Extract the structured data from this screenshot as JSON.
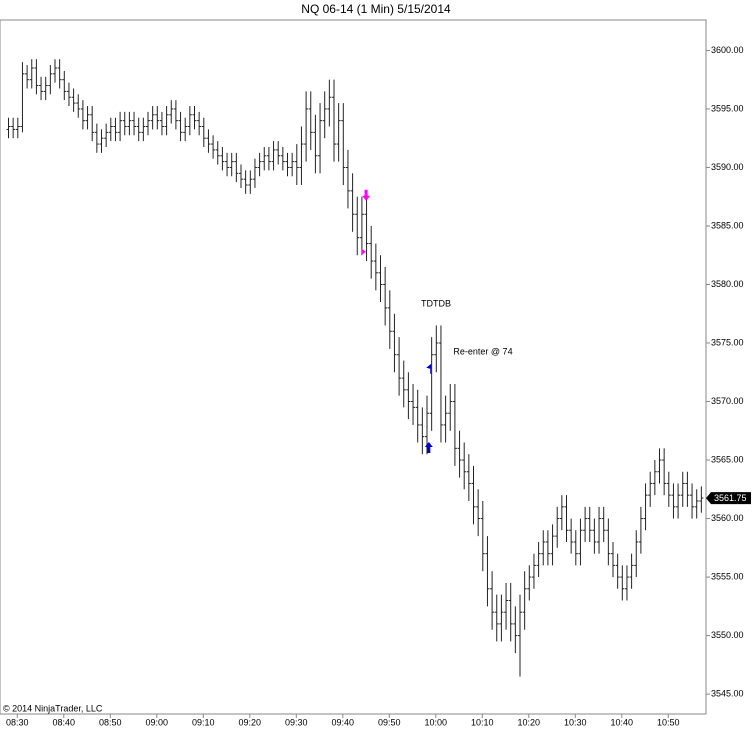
{
  "chart_data": {
    "type": "ohlc",
    "title": "NQ 06-14 (1 Min)  5/15/2014",
    "copyright": "© 2014 NinjaTrader, LLC",
    "color": "#222222",
    "categories": [
      null,
      null,
      "08:30",
      null,
      null,
      null,
      null,
      null,
      null,
      null,
      null,
      null,
      "08:40",
      null,
      null,
      null,
      null,
      null,
      null,
      null,
      null,
      null,
      "08:50",
      null,
      null,
      null,
      null,
      null,
      null,
      null,
      null,
      null,
      "09:00",
      null,
      null,
      null,
      null,
      null,
      null,
      null,
      null,
      null,
      "09:10",
      null,
      null,
      null,
      null,
      null,
      null,
      null,
      null,
      null,
      "09:20",
      null,
      null,
      null,
      null,
      null,
      null,
      null,
      null,
      null,
      "09:30",
      null,
      null,
      null,
      null,
      null,
      null,
      null,
      null,
      null,
      "09:40",
      null,
      null,
      null,
      null,
      null,
      null,
      null,
      null,
      null,
      "09:50",
      null,
      null,
      null,
      null,
      null,
      null,
      null,
      null,
      null,
      "10:00",
      null,
      null,
      null,
      null,
      null,
      null,
      null,
      null,
      null,
      "10:10",
      null,
      null,
      null,
      null,
      null,
      null,
      null,
      null,
      null,
      "10:20",
      null,
      null,
      null,
      null,
      null,
      null,
      null,
      null,
      null,
      "10:30",
      null,
      null,
      null,
      null,
      null,
      null,
      null,
      null,
      null,
      "10:40",
      null,
      null,
      null,
      null,
      null,
      null,
      null,
      null,
      null,
      "10:50",
      null,
      null,
      null,
      null,
      null,
      null,
      null
    ],
    "open": [
      3593.25,
      3593.5,
      3593.25,
      3593.5,
      3598,
      3597.5,
      3598.5,
      3597,
      3596.5,
      3597,
      3598,
      3598.5,
      3597.5,
      3596.5,
      3596,
      3595.5,
      3595,
      3594,
      3594.5,
      3593,
      3592,
      3592.5,
      3593,
      3593.5,
      3593,
      3594,
      3593.5,
      3594,
      3593.5,
      3593,
      3593.5,
      3594,
      3594.5,
      3594,
      3593.5,
      3594.5,
      3595,
      3594,
      3593,
      3593.5,
      3594.5,
      3594,
      3593.5,
      3592.5,
      3592,
      3591.5,
      3591,
      3590.5,
      3590,
      3590.5,
      3589.5,
      3589,
      3588.5,
      3589,
      3590,
      3590.5,
      3591,
      3590.5,
      3591.5,
      3591,
      3590.5,
      3590,
      3590.5,
      3590,
      3592,
      3595,
      3593,
      3591,
      3594,
      3595,
      3596,
      3592,
      3594,
      3590,
      3588,
      3586,
      3584,
      3586,
      3583.5,
      3582,
      3581,
      3580,
      3578,
      3576,
      3574,
      3572,
      3571,
      3570,
      3569.5,
      3568,
      3567,
      3569,
      3574,
      3575,
      3568,
      3569,
      3570,
      3566,
      3565,
      3564,
      3563,
      3561,
      3560,
      3557,
      3554,
      3552,
      3551,
      3552,
      3553,
      3551,
      3550,
      3552,
      3554,
      3555,
      3556,
      3557,
      3558,
      3557,
      3558.5,
      3560,
      3561,
      3559,
      3558,
      3557,
      3559,
      3560,
      3559,
      3558,
      3560,
      3559,
      3557,
      3556,
      3555,
      3554,
      3555,
      3556,
      3558,
      3560,
      3562,
      3563,
      3564,
      3565,
      3563,
      3562,
      3561,
      3562,
      3563,
      3562,
      3561,
      3561.5
    ],
    "high": [
      3594.25,
      3594.25,
      3594.25,
      3599,
      3598.75,
      3599.25,
      3599.25,
      3597.75,
      3597.75,
      3598.75,
      3599.25,
      3599.25,
      3598.25,
      3597.25,
      3596.75,
      3596.25,
      3595.75,
      3595.25,
      3595.25,
      3593.75,
      3593.25,
      3593.75,
      3594.25,
      3594.25,
      3594.75,
      3594.75,
      3594.75,
      3594.75,
      3594.25,
      3594.25,
      3594.75,
      3595.25,
      3595.25,
      3594.75,
      3595.25,
      3595.75,
      3595.75,
      3594.75,
      3594.25,
      3595.25,
      3595.25,
      3594.75,
      3594.25,
      3593.25,
      3592.75,
      3592.25,
      3591.75,
      3591.25,
      3591.25,
      3591.25,
      3590.25,
      3589.75,
      3589.75,
      3590.75,
      3591.25,
      3591.75,
      3591.75,
      3592.25,
      3592.25,
      3591.75,
      3591.25,
      3591.25,
      3592,
      3593.5,
      3596.5,
      3596.5,
      3594.5,
      3595.5,
      3596.5,
      3597.5,
      3597.5,
      3595.5,
      3595.5,
      3591.5,
      3589.5,
      3587.5,
      3587.5,
      3587.5,
      3585,
      3583.5,
      3582.5,
      3581.5,
      3579.5,
      3577.5,
      3575.5,
      3573.5,
      3572.5,
      3571.5,
      3571,
      3569.5,
      3570.5,
      3575.5,
      3576.5,
      3576.5,
      3570.5,
      3571.5,
      3571.5,
      3567.5,
      3566.5,
      3565.5,
      3564.5,
      3562.5,
      3561.5,
      3558.5,
      3555.5,
      3553.5,
      3553.5,
      3554.5,
      3554.5,
      3552.5,
      3553.5,
      3555.5,
      3556,
      3557,
      3558,
      3559,
      3559,
      3559.5,
      3561,
      3562,
      3562,
      3560,
      3559,
      3560,
      3561,
      3561,
      3560,
      3561,
      3561,
      3560,
      3558,
      3557,
      3556,
      3556,
      3557,
      3559,
      3561,
      3563,
      3564,
      3565,
      3566,
      3566,
      3564,
      3563,
      3563,
      3564,
      3564,
      3563,
      3562.5,
      3562.75
    ],
    "low": [
      3592.5,
      3592.5,
      3592.5,
      3593,
      3596.75,
      3596.75,
      3596.25,
      3595.75,
      3595.75,
      3596.25,
      3597.25,
      3596.75,
      3595.75,
      3595.25,
      3594.75,
      3594.25,
      3593.25,
      3593.25,
      3592.25,
      3591.25,
      3591.25,
      3591.75,
      3592.25,
      3592.25,
      3592.25,
      3592.75,
      3592.75,
      3592.75,
      3592.25,
      3592.25,
      3592.75,
      3593.25,
      3593.25,
      3592.75,
      3592.75,
      3593.75,
      3593.25,
      3592.25,
      3592.25,
      3592.75,
      3593.25,
      3592.75,
      3591.75,
      3591.25,
      3590.75,
      3590.25,
      3589.75,
      3589.25,
      3589.25,
      3588.75,
      3588.25,
      3587.75,
      3587.75,
      3588.25,
      3589.25,
      3589.75,
      3589.75,
      3589.75,
      3590.25,
      3589.75,
      3589.25,
      3589.25,
      3588.5,
      3588.5,
      3590.5,
      3591.5,
      3589.5,
      3589.5,
      3592.5,
      3593.5,
      3590.5,
      3590.5,
      3588.5,
      3586.5,
      3584.5,
      3582.5,
      3582.5,
      3582,
      3580.5,
      3579.5,
      3578.5,
      3576.5,
      3574.5,
      3572.5,
      3570.5,
      3569.5,
      3568.5,
      3568,
      3566.5,
      3565.5,
      3565.5,
      3567.5,
      3572.5,
      3566.5,
      3566.5,
      3567.5,
      3564.5,
      3563.5,
      3562.5,
      3561.5,
      3559.5,
      3558.5,
      3555.5,
      3552.5,
      3550.5,
      3549.5,
      3549.5,
      3550.5,
      3549.5,
      3548.5,
      3546.5,
      3550.5,
      3553,
      3554,
      3555,
      3556,
      3556,
      3556,
      3557.5,
      3559,
      3558,
      3557,
      3556,
      3556,
      3558,
      3558,
      3557,
      3557,
      3558,
      3556,
      3555,
      3554,
      3553,
      3553,
      3554,
      3555,
      3557,
      3559,
      3561,
      3562,
      3563,
      3562,
      3561,
      3560,
      3560,
      3561,
      3561,
      3560,
      3560,
      3560.5
    ],
    "close": [
      3593.5,
      3593.25,
      3593.5,
      3598,
      3597.5,
      3598.5,
      3597,
      3596.5,
      3597,
      3598,
      3598.5,
      3597.5,
      3596.5,
      3596,
      3595.5,
      3595,
      3594,
      3594.5,
      3593,
      3592,
      3592.5,
      3593,
      3593.5,
      3593,
      3594,
      3593.5,
      3594,
      3593.5,
      3593,
      3593.5,
      3594,
      3594.5,
      3594,
      3593.5,
      3594.5,
      3595,
      3594,
      3593,
      3593.5,
      3594.5,
      3594,
      3593.5,
      3592.5,
      3592,
      3591.5,
      3591,
      3590.5,
      3590,
      3590.5,
      3589.5,
      3589,
      3588.5,
      3589,
      3590,
      3590.5,
      3591,
      3590.5,
      3591.5,
      3591,
      3590.5,
      3590,
      3590.5,
      3590,
      3592,
      3595,
      3593,
      3591,
      3594,
      3595,
      3596,
      3592,
      3594,
      3590,
      3588,
      3586,
      3584,
      3586,
      3583.5,
      3582,
      3581,
      3580,
      3578,
      3576,
      3574,
      3572,
      3571,
      3570,
      3569.5,
      3568,
      3567,
      3569,
      3574,
      3575,
      3568,
      3569,
      3570,
      3566,
      3565,
      3564,
      3563,
      3561,
      3560,
      3557,
      3554,
      3552,
      3551,
      3552,
      3553,
      3551,
      3550,
      3552,
      3554,
      3555,
      3556,
      3557,
      3558,
      3557,
      3558.5,
      3560,
      3561,
      3559,
      3558,
      3557,
      3559,
      3560,
      3559,
      3558,
      3560,
      3559,
      3557,
      3556,
      3555,
      3554,
      3555,
      3556,
      3558,
      3560,
      3562,
      3563,
      3564,
      3565,
      3563,
      3562,
      3561,
      3562,
      3563,
      3562,
      3561,
      3561.5,
      3561.75
    ],
    "ylim": [
      3543.3,
      3602.6
    ],
    "yticks": [
      {
        "value": 3545,
        "label": "3545.00"
      },
      {
        "value": 3550,
        "label": "3550.00"
      },
      {
        "value": 3555,
        "label": "3555.00"
      },
      {
        "value": 3560,
        "label": "3560.00"
      },
      {
        "value": 3565,
        "label": "3565.00"
      },
      {
        "value": 3570,
        "label": "3570.00"
      },
      {
        "value": 3575,
        "label": "3575.00"
      },
      {
        "value": 3580,
        "label": "3580.00"
      },
      {
        "value": 3585,
        "label": "3585.00"
      },
      {
        "value": 3590,
        "label": "3590.00"
      },
      {
        "value": 3595,
        "label": "3595.00"
      },
      {
        "value": 3600,
        "label": "3600.00"
      }
    ],
    "markers": [
      {
        "shape": "arrow-down",
        "x": 77,
        "y": 3587.5,
        "color": "#ff00ff"
      },
      {
        "shape": "triangle-right",
        "x": 76.5,
        "y": 3582.8,
        "color": "#ff00ff"
      },
      {
        "shape": "arrow-up",
        "x": 90.5,
        "y": 3566.2,
        "color": "#0000cc"
      },
      {
        "shape": "flag-left",
        "x": 90.8,
        "y": 3572.8,
        "color": "#0000cc"
      }
    ],
    "annotations": [
      "TDTDB",
      "Re-enter @ 74"
    ]
  }
}
